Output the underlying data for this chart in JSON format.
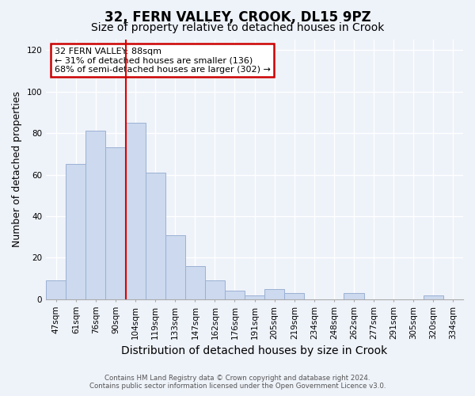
{
  "title": "32, FERN VALLEY, CROOK, DL15 9PZ",
  "subtitle": "Size of property relative to detached houses in Crook",
  "xlabel": "Distribution of detached houses by size in Crook",
  "ylabel": "Number of detached properties",
  "bar_labels": [
    "47sqm",
    "61sqm",
    "76sqm",
    "90sqm",
    "104sqm",
    "119sqm",
    "133sqm",
    "147sqm",
    "162sqm",
    "176sqm",
    "191sqm",
    "205sqm",
    "219sqm",
    "234sqm",
    "248sqm",
    "262sqm",
    "277sqm",
    "291sqm",
    "305sqm",
    "320sqm",
    "334sqm"
  ],
  "bar_values": [
    9,
    65,
    81,
    73,
    85,
    61,
    31,
    16,
    9,
    4,
    2,
    5,
    3,
    0,
    0,
    3,
    0,
    0,
    0,
    2,
    0
  ],
  "bar_color": "#ccd9ee",
  "bar_edge_color": "#9ab1d4",
  "vline_x": 3.5,
  "vline_color": "#dd0000",
  "annotation_text": "32 FERN VALLEY: 88sqm\n← 31% of detached houses are smaller (136)\n68% of semi-detached houses are larger (302) →",
  "annotation_box_color": "#ffffff",
  "annotation_box_edge_color": "#cc0000",
  "ylim": [
    0,
    125
  ],
  "yticks": [
    0,
    20,
    40,
    60,
    80,
    100,
    120
  ],
  "footer_line1": "Contains HM Land Registry data © Crown copyright and database right 2024.",
  "footer_line2": "Contains public sector information licensed under the Open Government Licence v3.0.",
  "bg_color": "#eef2f9",
  "grid_color": "#ffffff",
  "title_fontsize": 12,
  "subtitle_fontsize": 10,
  "tick_fontsize": 7.5,
  "ylabel_fontsize": 9,
  "xlabel_fontsize": 10
}
